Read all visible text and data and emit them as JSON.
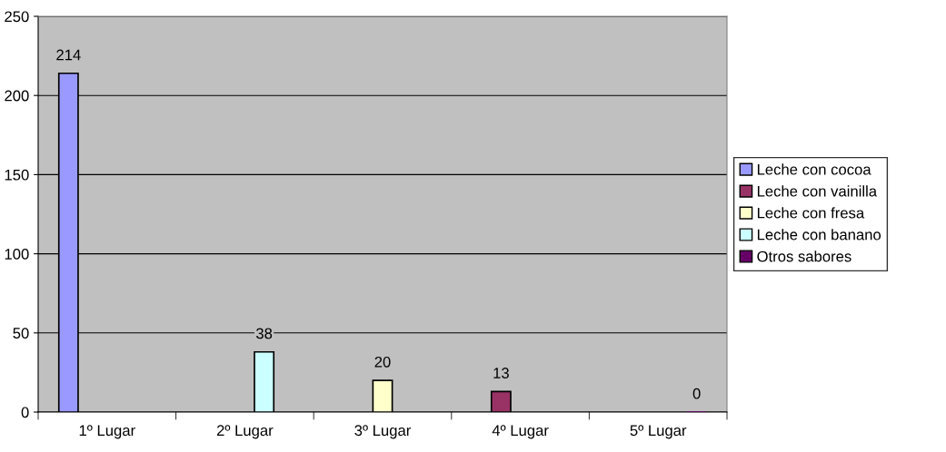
{
  "chart_data": {
    "type": "bar",
    "categories": [
      "1º Lugar",
      "2º Lugar",
      "3º Lugar",
      "4º Lugar",
      "5º Lugar"
    ],
    "series": [
      {
        "name": "Leche con cocoa",
        "color": "#9999ff",
        "values": [
          214,
          null,
          null,
          null,
          null
        ],
        "value_labels": [
          "214",
          null,
          null,
          null,
          null
        ]
      },
      {
        "name": "Leche con vainilla",
        "color": "#993366",
        "values": [
          null,
          null,
          null,
          13,
          null
        ],
        "value_labels": [
          null,
          null,
          null,
          "13",
          null
        ]
      },
      {
        "name": "Leche con fresa",
        "color": "#ffffcc",
        "values": [
          null,
          null,
          20,
          null,
          null
        ],
        "value_labels": [
          null,
          null,
          "20",
          null,
          null
        ]
      },
      {
        "name": "Leche con banano",
        "color": "#ccffff",
        "values": [
          null,
          38,
          null,
          null,
          null
        ],
        "value_labels": [
          null,
          "38",
          null,
          null,
          null
        ]
      },
      {
        "name": "Otros sabores",
        "color": "#660066",
        "values": [
          null,
          null,
          null,
          null,
          0
        ],
        "value_labels": [
          null,
          null,
          null,
          null,
          "0"
        ]
      }
    ],
    "ylim": [
      0,
      250
    ],
    "yticks": [
      0,
      50,
      100,
      150,
      200,
      250
    ],
    "grid": "y",
    "legend": "right"
  }
}
